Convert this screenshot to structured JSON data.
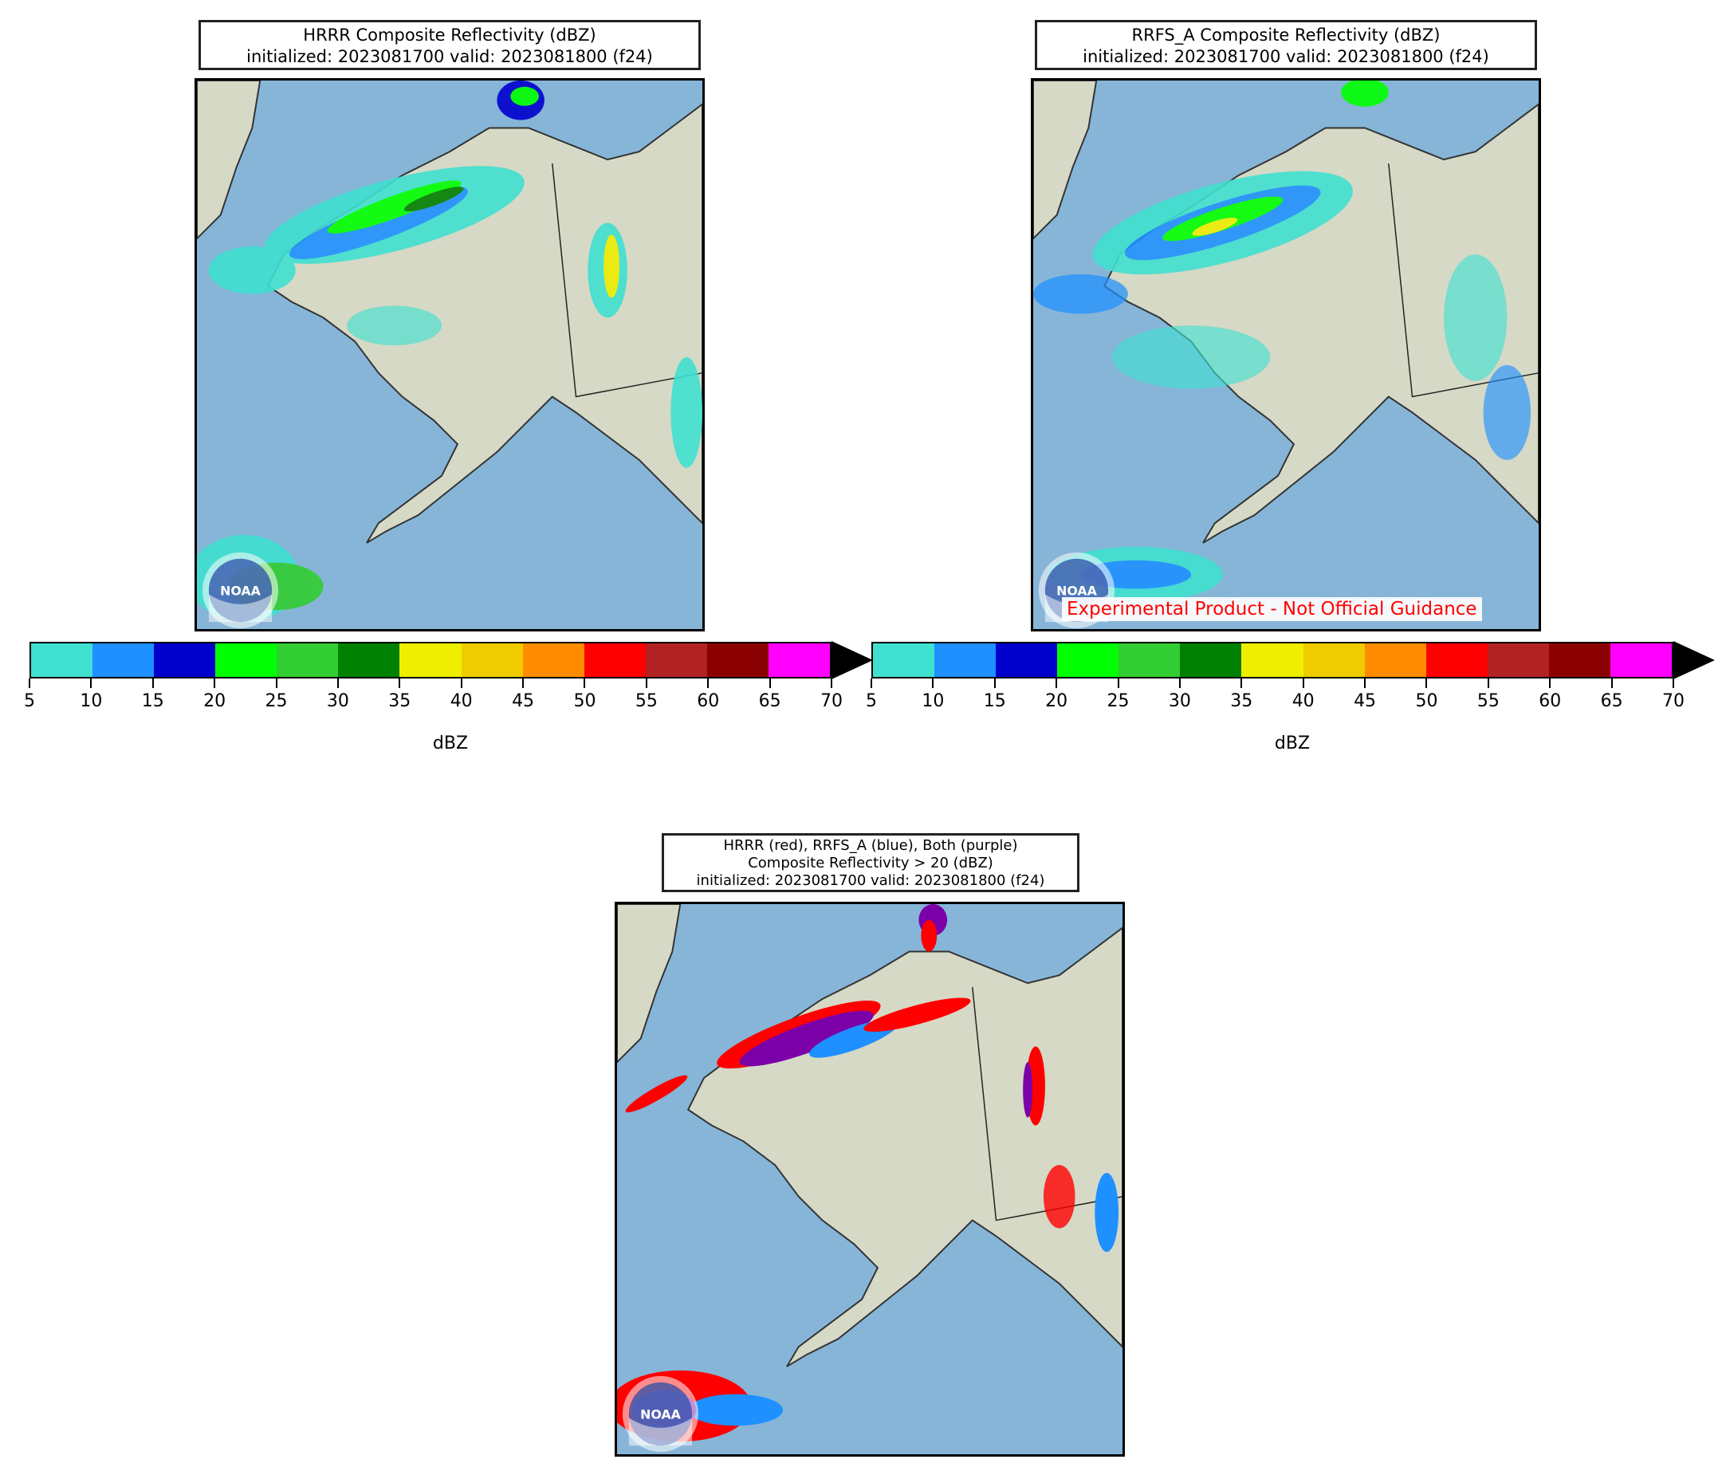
{
  "panels": [
    {
      "model": "HRRR",
      "title_line1": "HRRR Composite Reflectivity (dBZ)",
      "title_line2": "initialized: 2023081700 valid: 2023081800 (f24)",
      "logo_text": "NOAA"
    },
    {
      "model": "RRFS_A",
      "title_line1": "RRFS_A Composite Reflectivity (dBZ)",
      "title_line2": "initialized: 2023081700 valid: 2023081800 (f24)",
      "logo_text": "NOAA",
      "watermark": "Experimental Product - Not Official Guidance"
    },
    {
      "model": "Comparison",
      "title_line1": "HRRR (red), RRFS_A (blue), Both (purple)",
      "title_line2": "Composite Reflectivity > 20 (dBZ)",
      "title_line3": "initialized: 2023081700 valid: 2023081800 (f24)",
      "logo_text": "NOAA"
    }
  ],
  "colorbar": {
    "unit_label": "dBZ",
    "ticks": [
      "5",
      "10",
      "15",
      "20",
      "25",
      "30",
      "35",
      "40",
      "45",
      "50",
      "55",
      "60",
      "65",
      "70"
    ],
    "colors": [
      "#40e0d0",
      "#1e90ff",
      "#0000cd",
      "#00ff00",
      "#32cd32",
      "#008000",
      "#eeee00",
      "#eecc00",
      "#ff8c00",
      "#ff0000",
      "#b22222",
      "#8b0000",
      "#ff00ff"
    ],
    "extend": "max"
  },
  "map_colors": {
    "ocean": "#86b5d8",
    "land": "#d6d9c6",
    "hrrr_only": "#ff0000",
    "rrfs_only": "#1e90ff",
    "both": "#7b00a8"
  }
}
